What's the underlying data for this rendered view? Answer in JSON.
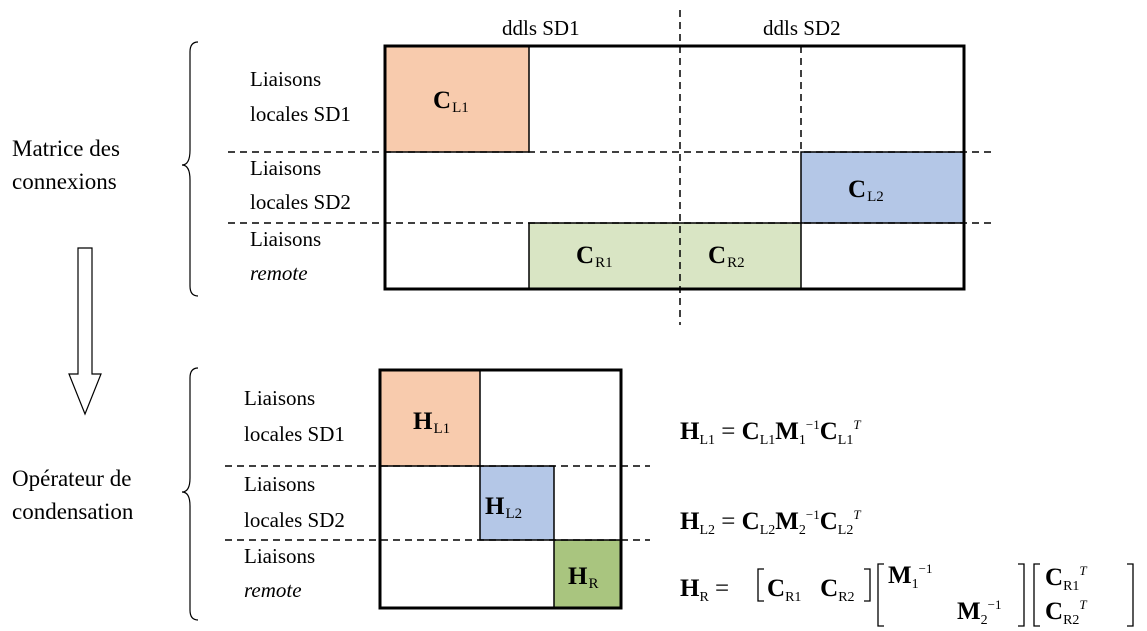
{
  "top_matrix": {
    "side_label": [
      "Matrice des",
      "connexions"
    ],
    "col_headers": [
      "ddls SD1",
      "ddls SD2"
    ],
    "rows": [
      {
        "line1": "Liaisons",
        "line2": "locales SD1",
        "italic2": false
      },
      {
        "line1": "Liaisons",
        "line2": "locales SD2",
        "italic2": false
      },
      {
        "line1": "Liaisons",
        "line2": "remote",
        "italic2": true
      }
    ],
    "blocks": [
      {
        "sym": "C",
        "sub": "L1",
        "color": "#f8cbad"
      },
      {
        "sym": "C",
        "sub": "L2",
        "color": "#b4c7e7"
      },
      {
        "sym": "C",
        "sub": "R1",
        "color": "#d9e5c4"
      },
      {
        "sym": "C",
        "sub": "R2",
        "color": "#d9e5c4"
      }
    ]
  },
  "bottom_matrix": {
    "side_label": [
      "Opérateur de",
      "condensation"
    ],
    "rows": [
      {
        "line1": "Liaisons",
        "line2": "locales SD1",
        "italic2": false
      },
      {
        "line1": "Liaisons",
        "line2": "locales SD2",
        "italic2": false
      },
      {
        "line1": "Liaisons",
        "line2": "remote",
        "italic2": true
      }
    ],
    "blocks": [
      {
        "sym": "H",
        "sub": "L1",
        "color": "#f8cbad"
      },
      {
        "sym": "H",
        "sub": "L2",
        "color": "#b4c7e7"
      },
      {
        "sym": "H",
        "sub": "R",
        "color": "#a9c57f"
      }
    ]
  },
  "equations": [
    "H_L1 = C_L1 M_1^-1 C_L1^T",
    "H_L2 = C_L2 M_2^-1 C_L2^T",
    "H_R = [C_R1 C_R2] [M_1^-1 ; M_2^-1] [C_R1^T ; C_R2^T]"
  ]
}
